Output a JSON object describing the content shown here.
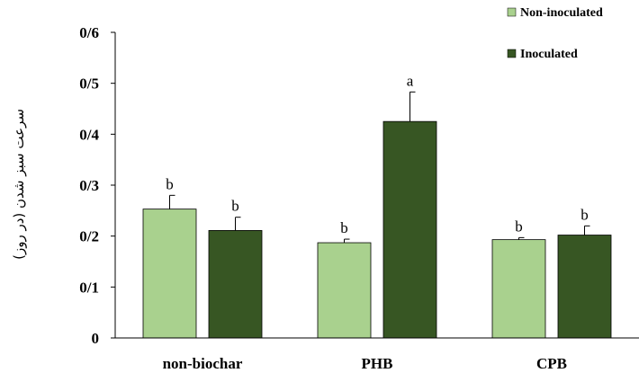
{
  "chart_data": {
    "type": "bar",
    "title": "",
    "xlabel": "",
    "ylabel": "سرعت سبز شدن (در روز)",
    "ylim": [
      0,
      0.6
    ],
    "yticks": [
      {
        "value": 0,
        "label": "0"
      },
      {
        "value": 0.1,
        "label": "0/1"
      },
      {
        "value": 0.2,
        "label": "0/2"
      },
      {
        "value": 0.3,
        "label": "0/3"
      },
      {
        "value": 0.4,
        "label": "0/4"
      },
      {
        "value": 0.5,
        "label": "0/5"
      },
      {
        "value": 0.6,
        "label": "0/6"
      }
    ],
    "grid": false,
    "legend_position": "top-right",
    "categories": [
      "non-biochar",
      "PHB",
      "CPB"
    ],
    "series": [
      {
        "name": "Non-inoculated",
        "color": "#a9d18e",
        "values": [
          0.253,
          0.187,
          0.193
        ],
        "errors": [
          0.027,
          0.007,
          0.004
        ],
        "letters": [
          "b",
          "b",
          "b"
        ]
      },
      {
        "name": "Inoculated",
        "color": "#375623",
        "values": [
          0.211,
          0.425,
          0.202
        ],
        "errors": [
          0.026,
          0.058,
          0.018
        ],
        "letters": [
          "b",
          "a",
          "b"
        ]
      }
    ]
  }
}
